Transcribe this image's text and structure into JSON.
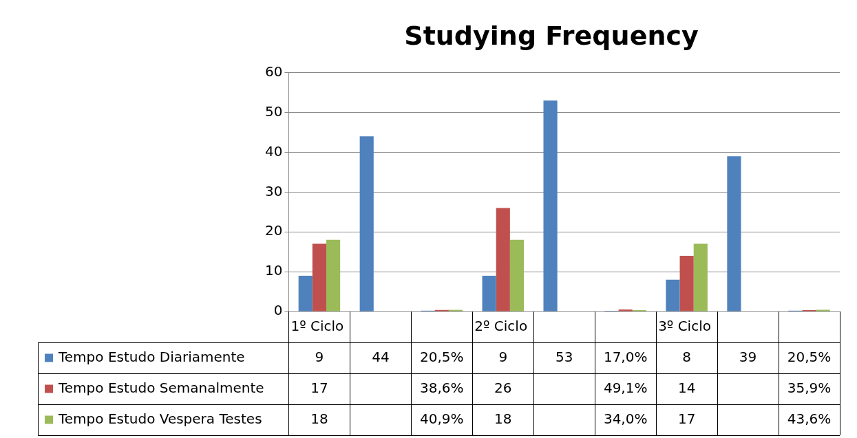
{
  "chart_data": {
    "type": "bar",
    "title": "Studying Frequency",
    "categories": [
      "1º Ciclo",
      null,
      null,
      "2º Ciclo",
      null,
      null,
      "3º Ciclo",
      null,
      null
    ],
    "series": [
      {
        "name": "Tempo Estudo Diariamente",
        "color": "#4f81bd",
        "values": [
          9,
          44,
          0.205,
          9,
          53,
          0.17,
          8,
          39,
          0.205
        ],
        "value_labels": [
          "9",
          "44",
          "20,5%",
          "9",
          "53",
          "17,0%",
          "8",
          "39",
          "20,5%"
        ]
      },
      {
        "name": "Tempo Estudo Semanalmente",
        "color": "#c0504d",
        "values": [
          17,
          null,
          0.386,
          26,
          null,
          0.491,
          14,
          null,
          0.359
        ],
        "value_labels": [
          "17",
          null,
          "38,6%",
          "26",
          null,
          "49,1%",
          "14",
          null,
          "35,9%"
        ]
      },
      {
        "name": "Tempo Estudo Vespera Testes",
        "color": "#9bbb59",
        "values": [
          18,
          null,
          0.409,
          18,
          null,
          0.34,
          17,
          null,
          0.436
        ],
        "value_labels": [
          "18",
          null,
          "40,9%",
          "18",
          null,
          "34,0%",
          "17",
          null,
          "43,6%"
        ]
      }
    ],
    "ylim": [
      0,
      60
    ],
    "yticks": [
      0,
      10,
      20,
      30,
      40,
      50,
      60
    ],
    "grid": "y",
    "legend": "bottom"
  }
}
